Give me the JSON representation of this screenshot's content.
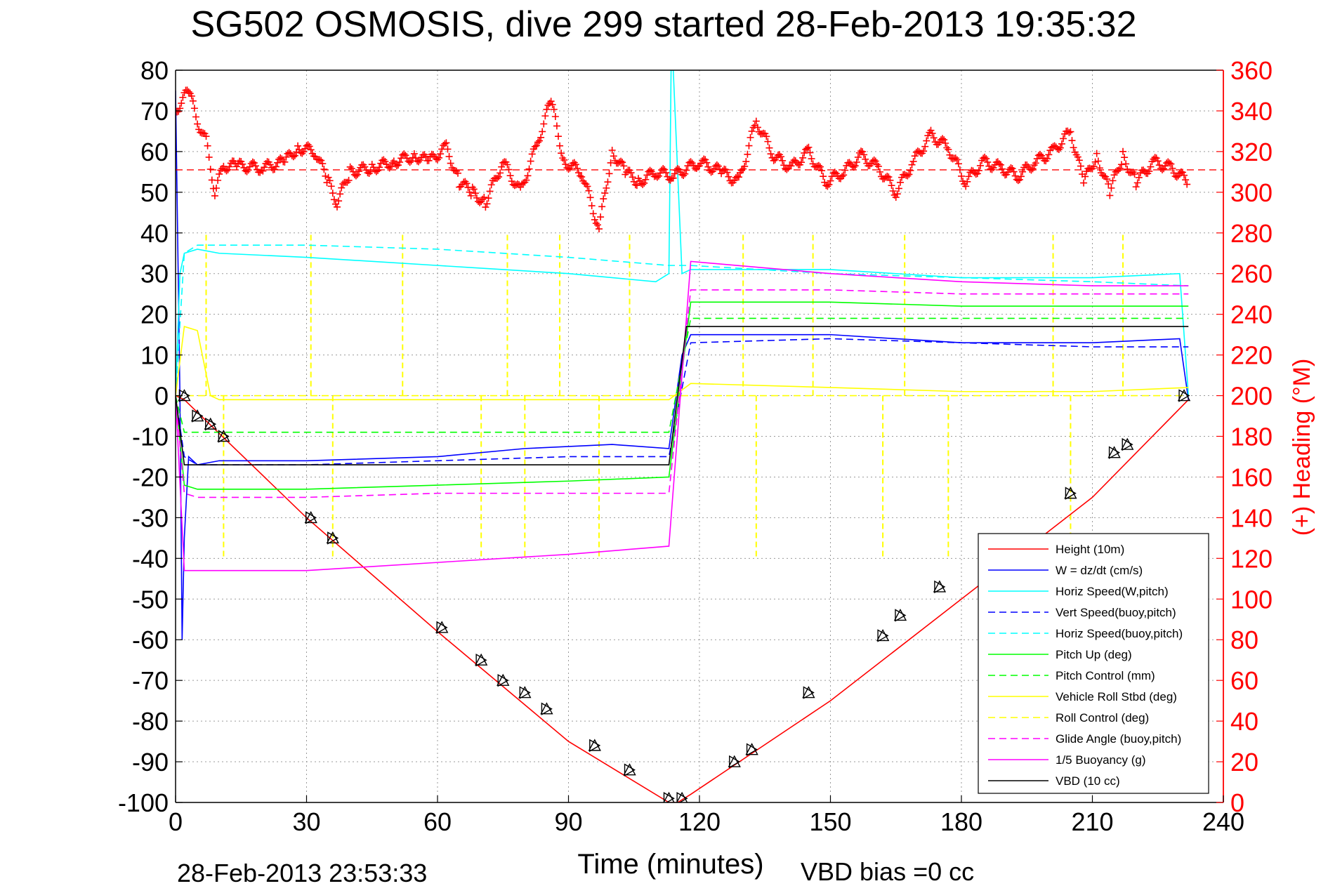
{
  "chart_data": {
    "type": "line",
    "title": "SG502 OSMOSIS, dive 299 started 28-Feb-2013 19:35:32",
    "xlabel": "Time (minutes)",
    "ylabel_right": "(+) Heading (°M)",
    "footer_left": "28-Feb-2013 23:53:33",
    "footer_right": "VBD bias =0 cc",
    "xlim": [
      0,
      240
    ],
    "ylim": [
      -100,
      80
    ],
    "ylim_right": [
      0,
      360
    ],
    "xticks": [
      "0",
      "30",
      "60",
      "90",
      "120",
      "150",
      "180",
      "210",
      "240"
    ],
    "yticks": [
      "80",
      "70",
      "60",
      "50",
      "40",
      "30",
      "20",
      "10",
      "0",
      "-10",
      "-20",
      "-30",
      "-40",
      "-50",
      "-60",
      "-70",
      "-80",
      "-90",
      "-100"
    ],
    "yticks_right": [
      "360",
      "340",
      "320",
      "300",
      "280",
      "260",
      "240",
      "220",
      "200",
      "180",
      "160",
      "140",
      "120",
      "100",
      "80",
      "60",
      "40",
      "20",
      "0"
    ],
    "grid": true,
    "legend_position": "bottom-right",
    "colors": {
      "red": "#ff0000",
      "blue": "#0000ff",
      "cyan": "#00ffff",
      "green": "#00ff00",
      "yellow": "#ffff00",
      "magenta": "#ff00ff",
      "black": "#000000"
    },
    "legend": [
      {
        "label": "Height (10m)",
        "color": "#ff0000",
        "dash": false
      },
      {
        "label": "W = dz/dt (cm/s)",
        "color": "#0000ff",
        "dash": false
      },
      {
        "label": "Horiz Speed(W,pitch)",
        "color": "#00ffff",
        "dash": false
      },
      {
        "label": "Vert Speed(buoy,pitch)",
        "color": "#0000ff",
        "dash": true
      },
      {
        "label": "Horiz Speed(buoy,pitch)",
        "color": "#00ffff",
        "dash": true
      },
      {
        "label": "Pitch Up (deg)",
        "color": "#00ff00",
        "dash": false
      },
      {
        "label": "Pitch Control (mm)",
        "color": "#00ff00",
        "dash": true
      },
      {
        "label": "Vehicle Roll Stbd (deg)",
        "color": "#ffff00",
        "dash": false
      },
      {
        "label": "Roll Control (deg)",
        "color": "#ffff00",
        "dash": true
      },
      {
        "label": "Glide Angle (buoy,pitch)",
        "color": "#ff00ff",
        "dash": true
      },
      {
        "label": "1/5 Buoyancy (g)",
        "color": "#ff00ff",
        "dash": false
      },
      {
        "label": "VBD (10 cc)",
        "color": "#000000",
        "dash": false
      }
    ],
    "series": [
      {
        "name": "Height (10m)",
        "color": "#ff0000",
        "dash": false,
        "x": [
          0,
          2,
          30,
          60,
          90,
          113,
          115,
          118,
          150,
          180,
          210,
          232
        ],
        "y": [
          0,
          -1,
          -30,
          -58,
          -85,
          -100,
          -100,
          -98,
          -75,
          -50,
          -25,
          -1
        ]
      },
      {
        "name": "W = dz/dt (cm/s)",
        "color": "#0000ff",
        "dash": false,
        "x": [
          0,
          1,
          1.5,
          2,
          3,
          5,
          10,
          30,
          60,
          80,
          100,
          113,
          116,
          118,
          150,
          180,
          210,
          230,
          232
        ],
        "y": [
          75,
          0,
          -60,
          -35,
          -15,
          -17,
          -16,
          -16,
          -15,
          -13,
          -12,
          -13,
          10,
          15,
          15,
          13,
          13,
          14,
          -1
        ]
      },
      {
        "name": "Horiz Speed(W,pitch)",
        "color": "#00ffff",
        "dash": false,
        "x": [
          0,
          1,
          2,
          5,
          10,
          30,
          60,
          90,
          110,
          113,
          113.5,
          114,
          116,
          118,
          150,
          180,
          210,
          230,
          232
        ],
        "y": [
          0,
          30,
          35,
          36,
          35,
          34,
          32,
          30,
          28,
          30,
          80,
          80,
          30,
          31,
          31,
          29,
          29,
          30,
          0
        ]
      },
      {
        "name": "Vert Speed(buoy,pitch)",
        "color": "#0000ff",
        "dash": true,
        "x": [
          0,
          2,
          5,
          30,
          60,
          90,
          113,
          118,
          150,
          180,
          210,
          232
        ],
        "y": [
          0,
          -15,
          -17,
          -17,
          -16,
          -15,
          -15,
          13,
          14,
          13,
          12,
          12
        ]
      },
      {
        "name": "Horiz Speed(buoy,pitch)",
        "color": "#00ffff",
        "dash": true,
        "x": [
          0,
          2,
          5,
          30,
          60,
          90,
          113,
          118,
          150,
          180,
          210,
          232
        ],
        "y": [
          0,
          35,
          37,
          37,
          36,
          34,
          32,
          32,
          30,
          29,
          28,
          27
        ]
      },
      {
        "name": "Pitch Up (deg)",
        "color": "#00ff00",
        "dash": false,
        "x": [
          0,
          2,
          5,
          30,
          60,
          90,
          113,
          118,
          150,
          180,
          210,
          232
        ],
        "y": [
          0,
          -22,
          -23,
          -23,
          -22,
          -21,
          -20,
          23,
          23,
          22,
          22,
          22
        ]
      },
      {
        "name": "Pitch Control (mm)",
        "color": "#00ff00",
        "dash": true,
        "x": [
          0,
          2,
          5,
          30,
          60,
          90,
          113,
          118,
          150,
          180,
          210,
          232
        ],
        "y": [
          0,
          -9,
          -9,
          -9,
          -9,
          -9,
          -9,
          19,
          19,
          19,
          19,
          19
        ]
      },
      {
        "name": "Vehicle Roll Stbd (deg)",
        "color": "#ffff00",
        "dash": false,
        "x": [
          0,
          2,
          5,
          8,
          10,
          30,
          60,
          90,
          113,
          118,
          150,
          180,
          210,
          232
        ],
        "y": [
          0,
          17,
          16,
          0,
          -1,
          -1,
          -1,
          -1,
          -1,
          3,
          2,
          1,
          1,
          2
        ]
      },
      {
        "name": "Roll Control (deg)",
        "color": "#ffff00",
        "dash": true,
        "x": [
          0,
          2,
          5,
          8,
          30,
          60,
          90,
          113,
          118,
          150,
          180,
          210,
          232
        ],
        "y": [
          0,
          0,
          0,
          0,
          0,
          0,
          0,
          0,
          0,
          0,
          0,
          0,
          0
        ]
      },
      {
        "name": "Glide Angle (buoy,pitch)",
        "color": "#ff00ff",
        "dash": true,
        "x": [
          0,
          2,
          5,
          30,
          60,
          90,
          113,
          118,
          150,
          180,
          210,
          232
        ],
        "y": [
          0,
          -24,
          -25,
          -25,
          -24,
          -24,
          -24,
          26,
          26,
          25,
          25,
          25
        ]
      },
      {
        "name": "1/5 Buoyancy (g)",
        "color": "#ff00ff",
        "dash": false,
        "x": [
          0,
          2,
          30,
          60,
          90,
          113,
          118,
          150,
          180,
          210,
          232
        ],
        "y": [
          0,
          -43,
          -43,
          -41,
          -39,
          -37,
          33,
          30,
          28,
          27,
          27
        ]
      },
      {
        "name": "VBD (10 cc)",
        "color": "#000000",
        "dash": false,
        "x": [
          0,
          2,
          4,
          113,
          117,
          232
        ],
        "y": [
          0,
          -17,
          -17,
          -17,
          17,
          17
        ]
      }
    ],
    "roll_control_spikes": {
      "x_down_up": [
        7,
        31,
        52,
        76,
        88,
        104,
        130,
        146,
        167,
        201,
        217
      ],
      "x_up_down": [
        11,
        36,
        70,
        80,
        97,
        133,
        162,
        177,
        205
      ],
      "amplitude_up": 40,
      "amplitude_down": -40
    },
    "heading_series": {
      "name": "(+) Heading (°M)",
      "color": "#ff0000",
      "axis": "right",
      "x": [
        0,
        3,
        5,
        7,
        9,
        11,
        14,
        20,
        25,
        28,
        32,
        35,
        37,
        40,
        45,
        50,
        55,
        58,
        62,
        65,
        68,
        71,
        75,
        79,
        83,
        86,
        89,
        93,
        97,
        100,
        103,
        106,
        110,
        114,
        120,
        125,
        129,
        133,
        137,
        141,
        145,
        149,
        153,
        157,
        161,
        165,
        169,
        173,
        177,
        181,
        185,
        189,
        193,
        197,
        201,
        205,
        208,
        211,
        214,
        217,
        220,
        224,
        228,
        232
      ],
      "y": [
        340,
        350,
        335,
        325,
        300,
        313,
        313,
        312,
        315,
        322,
        320,
        305,
        295,
        310,
        312,
        315,
        318,
        315,
        322,
        305,
        300,
        295,
        315,
        300,
        325,
        345,
        315,
        310,
        282,
        320,
        310,
        305,
        310,
        308,
        315,
        310,
        305,
        335,
        318,
        312,
        320,
        305,
        310,
        318,
        312,
        300,
        315,
        328,
        322,
        305,
        315,
        312,
        308,
        315,
        320,
        330,
        305,
        318,
        300,
        318,
        305,
        315,
        312,
        305
      ],
      "mean": 311
    },
    "markers": {
      "x": [
        2,
        5,
        8,
        11,
        31,
        36,
        61,
        70,
        75,
        80,
        85,
        96,
        104,
        113,
        116,
        128,
        132,
        145,
        162,
        166,
        175,
        205,
        215,
        218,
        231
      ],
      "y": [
        0,
        -5,
        -7,
        -10,
        -30,
        -35,
        -57,
        -65,
        -70,
        -73,
        -77,
        -86,
        -92,
        -99,
        -99,
        -90,
        -87,
        -73,
        -59,
        -54,
        -47,
        -24,
        -14,
        -12,
        0
      ]
    }
  }
}
